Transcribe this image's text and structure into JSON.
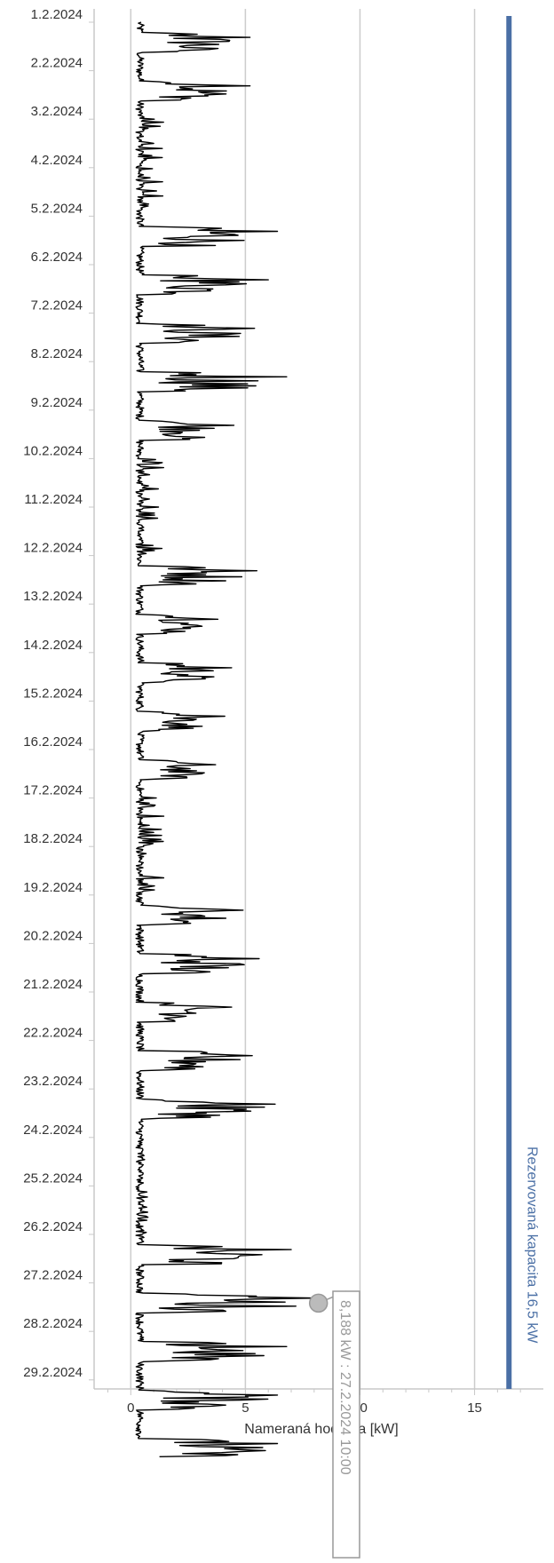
{
  "chart_data": {
    "type": "line",
    "orientation": "vertical-time",
    "xlabel": "Nameraná hodnota [kW]",
    "xlim": [
      -1.6,
      18
    ],
    "x_ticks": [
      "0",
      "5",
      "10",
      "15"
    ],
    "x_tick_values": [
      0,
      5,
      10,
      15
    ],
    "grid": "vertical-lines",
    "date_labels": [
      "1.2.2024",
      "2.2.2024",
      "3.2.2024",
      "4.2.2024",
      "5.2.2024",
      "6.2.2024",
      "7.2.2024",
      "8.2.2024",
      "9.2.2024",
      "10.2.2024",
      "11.2.2024",
      "12.2.2024",
      "13.2.2024",
      "14.2.2024",
      "15.2.2024",
      "16.2.2024",
      "17.2.2024",
      "18.2.2024",
      "19.2.2024",
      "20.2.2024",
      "21.2.2024",
      "22.2.2024",
      "23.2.2024",
      "24.2.2024",
      "25.2.2024",
      "26.2.2024",
      "27.2.2024",
      "28.2.2024",
      "29.2.2024"
    ],
    "daily_peaks_kW": [
      5.2,
      5.2,
      1.5,
      1.5,
      6.4,
      6.0,
      5.4,
      6.8,
      4.5,
      1.6,
      1.6,
      5.5,
      3.8,
      4.4,
      4.1,
      3.7,
      1.5,
      1.6,
      4.9,
      5.6,
      4.4,
      5.3,
      6.3,
      0.8,
      0.8,
      7.0,
      8.188,
      6.8,
      6.4
    ],
    "daily_base_kW": [
      0.4,
      0.4,
      0.4,
      0.4,
      0.4,
      0.4,
      0.4,
      0.4,
      0.4,
      0.4,
      0.4,
      0.4,
      0.4,
      0.4,
      0.4,
      0.4,
      0.4,
      0.4,
      0.4,
      0.4,
      0.4,
      0.4,
      0.4,
      0.4,
      0.4,
      0.4,
      0.4,
      0.4,
      0.4
    ],
    "series": [
      {
        "name": "",
        "color": "#000000"
      }
    ],
    "reference_line": {
      "value": 16.5,
      "label": "Rezervovaná kapacita 16,5 kW",
      "color": "#4a6fa5"
    },
    "tooltip": {
      "text": "8,188 kW : 27.2.2024 10:00",
      "value": 8.188
    }
  }
}
